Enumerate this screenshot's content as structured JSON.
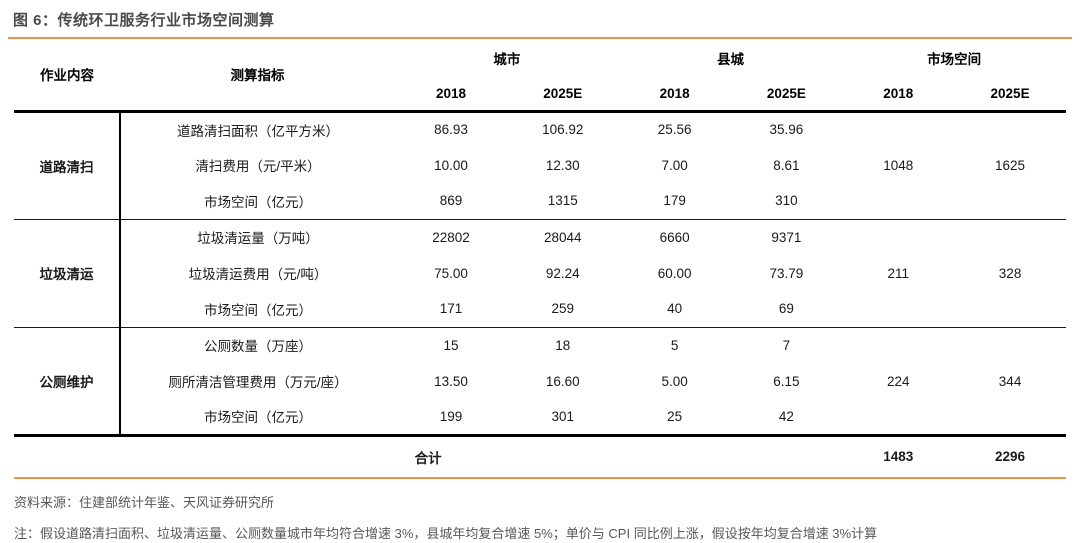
{
  "figure": {
    "title": "图 6：传统环卫服务行业市场空间测算"
  },
  "colors": {
    "accent": "#E9904E",
    "title_text": "#4A4A4A",
    "body_text": "#1A1A1A",
    "footer_text": "#595757"
  },
  "table": {
    "header": {
      "job": "作业内容",
      "indicator": "测算指标",
      "group_city": "城市",
      "group_county": "县城",
      "group_market": "市场空间",
      "years": [
        "2018",
        "2025E"
      ]
    },
    "groups": [
      {
        "name": "道路清扫",
        "rows": [
          {
            "indicator": "道路清扫面积（亿平方米）",
            "v": [
              "86.93",
              "106.92",
              "25.56",
              "35.96",
              "",
              ""
            ]
          },
          {
            "indicator": "清扫费用（元/平米）",
            "v": [
              "10.00",
              "12.30",
              "7.00",
              "8.61",
              "1048",
              "1625"
            ]
          },
          {
            "indicator": "市场空间（亿元）",
            "v": [
              "869",
              "1315",
              "179",
              "310",
              "",
              ""
            ]
          }
        ]
      },
      {
        "name": "垃圾清运",
        "rows": [
          {
            "indicator": "垃圾清运量（万吨）",
            "v": [
              "22802",
              "28044",
              "6660",
              "9371",
              "",
              ""
            ]
          },
          {
            "indicator": "垃圾清运费用（元/吨）",
            "v": [
              "75.00",
              "92.24",
              "60.00",
              "73.79",
              "211",
              "328"
            ]
          },
          {
            "indicator": "市场空间（亿元）",
            "v": [
              "171",
              "259",
              "40",
              "69",
              "",
              ""
            ]
          }
        ]
      },
      {
        "name": "公厕维护",
        "rows": [
          {
            "indicator": "公厕数量（万座）",
            "v": [
              "15",
              "18",
              "5",
              "7",
              "",
              ""
            ]
          },
          {
            "indicator": "厕所清洁管理费用（万元/座）",
            "v": [
              "13.50",
              "16.60",
              "5.00",
              "6.15",
              "224",
              "344"
            ]
          },
          {
            "indicator": "市场空间（亿元）",
            "v": [
              "199",
              "301",
              "25",
              "42",
              "",
              ""
            ]
          }
        ]
      }
    ],
    "total": {
      "label": "合计",
      "v": [
        "1483",
        "2296"
      ]
    }
  },
  "footer": {
    "source": "资料来源：住建部统计年鉴、天风证券研究所",
    "note": "注：假设道路清扫面积、垃圾清运量、公厕数量城市年均符合增速 3%，县城年均复合增速 5%；单价与 CPI 同比例上涨，假设按年均复合增速 3%计算"
  }
}
